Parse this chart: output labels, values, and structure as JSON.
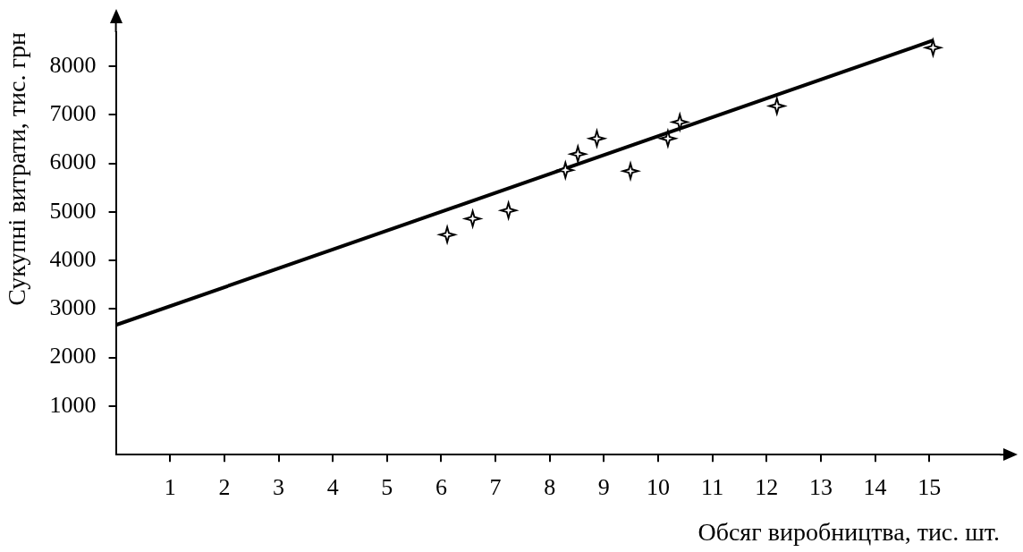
{
  "chart_data": {
    "type": "scatter",
    "xlabel": "Обсяг виробництва, тис. шт.",
    "ylabel": "Сукупні витрати, тис. грн",
    "xlim": [
      0,
      16.3
    ],
    "ylim": [
      0,
      8700
    ],
    "xticks": [
      1,
      2,
      3,
      4,
      5,
      6,
      7,
      8,
      9,
      10,
      11,
      12,
      13,
      14,
      15
    ],
    "yticks": [
      1000,
      2000,
      3000,
      4000,
      5000,
      6000,
      7000,
      8000
    ],
    "grid": false,
    "legend": false,
    "marker": "star",
    "series": [
      {
        "color": "#000000",
        "x": [
          6.11,
          6.58,
          7.24,
          8.29,
          8.52,
          8.87,
          9.49,
          10.18,
          10.4,
          12.19,
          15.07
        ],
        "values": [
          4530,
          4860,
          5030,
          5860,
          6190,
          6510,
          5840,
          6510,
          6850,
          7180,
          8380
        ]
      },
      {
        "type": "line",
        "color": "#000000",
        "marker": "none",
        "x": [
          0,
          15.07
        ],
        "values": [
          2670,
          8530
        ]
      }
    ]
  }
}
